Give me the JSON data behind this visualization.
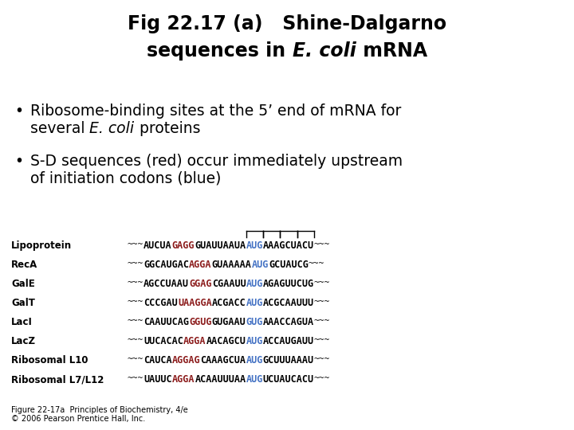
{
  "background": "#ffffff",
  "title1": "Fig 22.17 (a)   Shine-Dalgarno",
  "title2_parts": [
    {
      "text": "sequences in ",
      "italic": false
    },
    {
      "text": "E. coli",
      "italic": true
    },
    {
      "text": " mRNA",
      "italic": false
    }
  ],
  "bullet1_line1": "Ribosome-binding sites at the 5’ end of mRNA for",
  "bullet1_line2_parts": [
    {
      "text": "several ",
      "italic": false
    },
    {
      "text": "E. coli",
      "italic": true
    },
    {
      "text": " proteins",
      "italic": false
    }
  ],
  "bullet2_line1": "S-D sequences (red) occur immediately upstream",
  "bullet2_line2": "of initiation codons (blue)",
  "caption_line1": "Figure 22-17a  Principles of Biochemistry, 4/e",
  "caption_line2": "© 2006 Pearson Prentice Hall, Inc.",
  "red": "#8B1A1A",
  "blue": "#4472C4",
  "black": "#000000",
  "rows": [
    {
      "label": "Lipoprotein",
      "segments": [
        {
          "text": "~~~",
          "type": "squiggle"
        },
        {
          "text": "AUCUA",
          "type": "black"
        },
        {
          "text": "GAGG",
          "type": "red"
        },
        {
          "text": "GUAUUAAUA",
          "type": "black"
        },
        {
          "text": "AUG",
          "type": "blue"
        },
        {
          "text": "AAAGCUACU",
          "type": "black"
        },
        {
          "text": "~~~",
          "type": "squiggle"
        }
      ]
    },
    {
      "label": "RecA",
      "segments": [
        {
          "text": "~~~",
          "type": "squiggle"
        },
        {
          "text": "GGCAUGAC",
          "type": "black"
        },
        {
          "text": "AGGA",
          "type": "red"
        },
        {
          "text": "GUAAAAA",
          "type": "black"
        },
        {
          "text": "AUG",
          "type": "blue"
        },
        {
          "text": "GCUAUCG",
          "type": "black"
        },
        {
          "text": "~~~",
          "type": "squiggle"
        }
      ]
    },
    {
      "label": "GalE",
      "segments": [
        {
          "text": "~~~",
          "type": "squiggle"
        },
        {
          "text": "AGCCUAAU",
          "type": "black"
        },
        {
          "text": "GGAG",
          "type": "red"
        },
        {
          "text": "CGAAUU",
          "type": "black"
        },
        {
          "text": "AUG",
          "type": "blue"
        },
        {
          "text": "AGAGUUCUG",
          "type": "black"
        },
        {
          "text": "~~~",
          "type": "squiggle"
        }
      ]
    },
    {
      "label": "GalT",
      "segments": [
        {
          "text": "~~~",
          "type": "squiggle"
        },
        {
          "text": "CCCGAU",
          "type": "black"
        },
        {
          "text": "UAAGGA",
          "type": "red"
        },
        {
          "text": "ACGACC",
          "type": "black"
        },
        {
          "text": "AUG",
          "type": "blue"
        },
        {
          "text": "ACGCAAUUU",
          "type": "black"
        },
        {
          "text": "~~~",
          "type": "squiggle"
        }
      ]
    },
    {
      "label": "LacI",
      "segments": [
        {
          "text": "~~~",
          "type": "squiggle"
        },
        {
          "text": "CAAUUCAG",
          "type": "black"
        },
        {
          "text": "GGUG",
          "type": "red"
        },
        {
          "text": "GUGAAU",
          "type": "black"
        },
        {
          "text": "GUG",
          "type": "blue"
        },
        {
          "text": "AAACCAGUA",
          "type": "black"
        },
        {
          "text": "~~~",
          "type": "squiggle"
        }
      ]
    },
    {
      "label": "LacZ",
      "segments": [
        {
          "text": "~~~",
          "type": "squiggle"
        },
        {
          "text": "UUCACAC",
          "type": "black"
        },
        {
          "text": "AGGA",
          "type": "red"
        },
        {
          "text": "AACAGCU",
          "type": "black"
        },
        {
          "text": "AUG",
          "type": "blue"
        },
        {
          "text": "ACCAUGAUU",
          "type": "black"
        },
        {
          "text": "~~~",
          "type": "squiggle"
        }
      ]
    },
    {
      "label": "Ribosomal L10",
      "segments": [
        {
          "text": "~~~",
          "type": "squiggle"
        },
        {
          "text": "CAUCA",
          "type": "black"
        },
        {
          "text": "AGGAG",
          "type": "red"
        },
        {
          "text": "CAAAGCUA",
          "type": "black"
        },
        {
          "text": "AUG",
          "type": "blue"
        },
        {
          "text": "GCUUUAAAU",
          "type": "black"
        },
        {
          "text": "~~~",
          "type": "squiggle"
        }
      ]
    },
    {
      "label": "Ribosomal L7/L12",
      "segments": [
        {
          "text": "~~~",
          "type": "squiggle"
        },
        {
          "text": "UAUUC",
          "type": "black"
        },
        {
          "text": "AGGA",
          "type": "red"
        },
        {
          "text": "ACAAUUUAA",
          "type": "black"
        },
        {
          "text": "AUG",
          "type": "blue"
        },
        {
          "text": "UCUAUCACU",
          "type": "black"
        },
        {
          "text": "~~~",
          "type": "squiggle"
        }
      ]
    }
  ]
}
